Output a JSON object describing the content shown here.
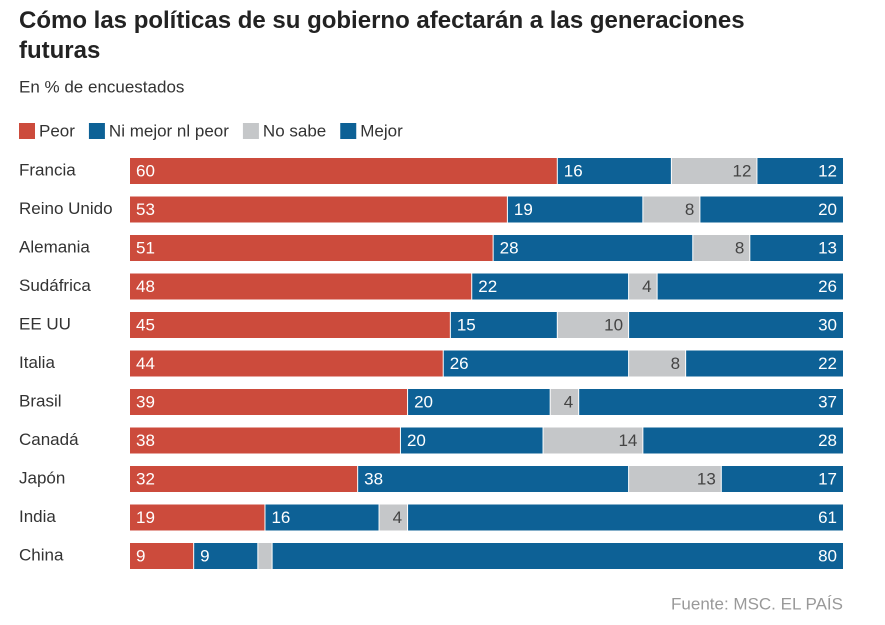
{
  "chart_data": {
    "type": "stacked-bar-horizontal",
    "title": "Cómo las políticas de su gobierno afectarán a las generaciones futuras",
    "subtitle": "En % de encuestados",
    "source": "Fuente: MSC. EL PAÍS",
    "categories": [
      "Francia",
      "Reino Unido",
      "Alemania",
      "Sudáfrica",
      "EE UU",
      "Italia",
      "Brasil",
      "Canadá",
      "Japón",
      "India",
      "China"
    ],
    "series": [
      {
        "name": "Peor",
        "color": "#cc4b3c",
        "values": [
          60,
          53,
          51,
          48,
          45,
          44,
          39,
          38,
          32,
          19,
          9
        ]
      },
      {
        "name": "Ni mejor nl peor",
        "color": "#0d6196",
        "values": [
          16,
          19,
          28,
          22,
          15,
          26,
          20,
          20,
          38,
          16,
          9
        ]
      },
      {
        "name": "No sabe",
        "color": "#c5c7c9",
        "values": [
          12,
          8,
          8,
          4,
          10,
          8,
          4,
          14,
          13,
          4,
          2
        ]
      },
      {
        "name": "Mejor",
        "color": "#0d6196",
        "values": [
          12,
          20,
          13,
          26,
          30,
          22,
          37,
          28,
          17,
          61,
          80
        ]
      }
    ],
    "xlim": [
      0,
      100
    ]
  }
}
